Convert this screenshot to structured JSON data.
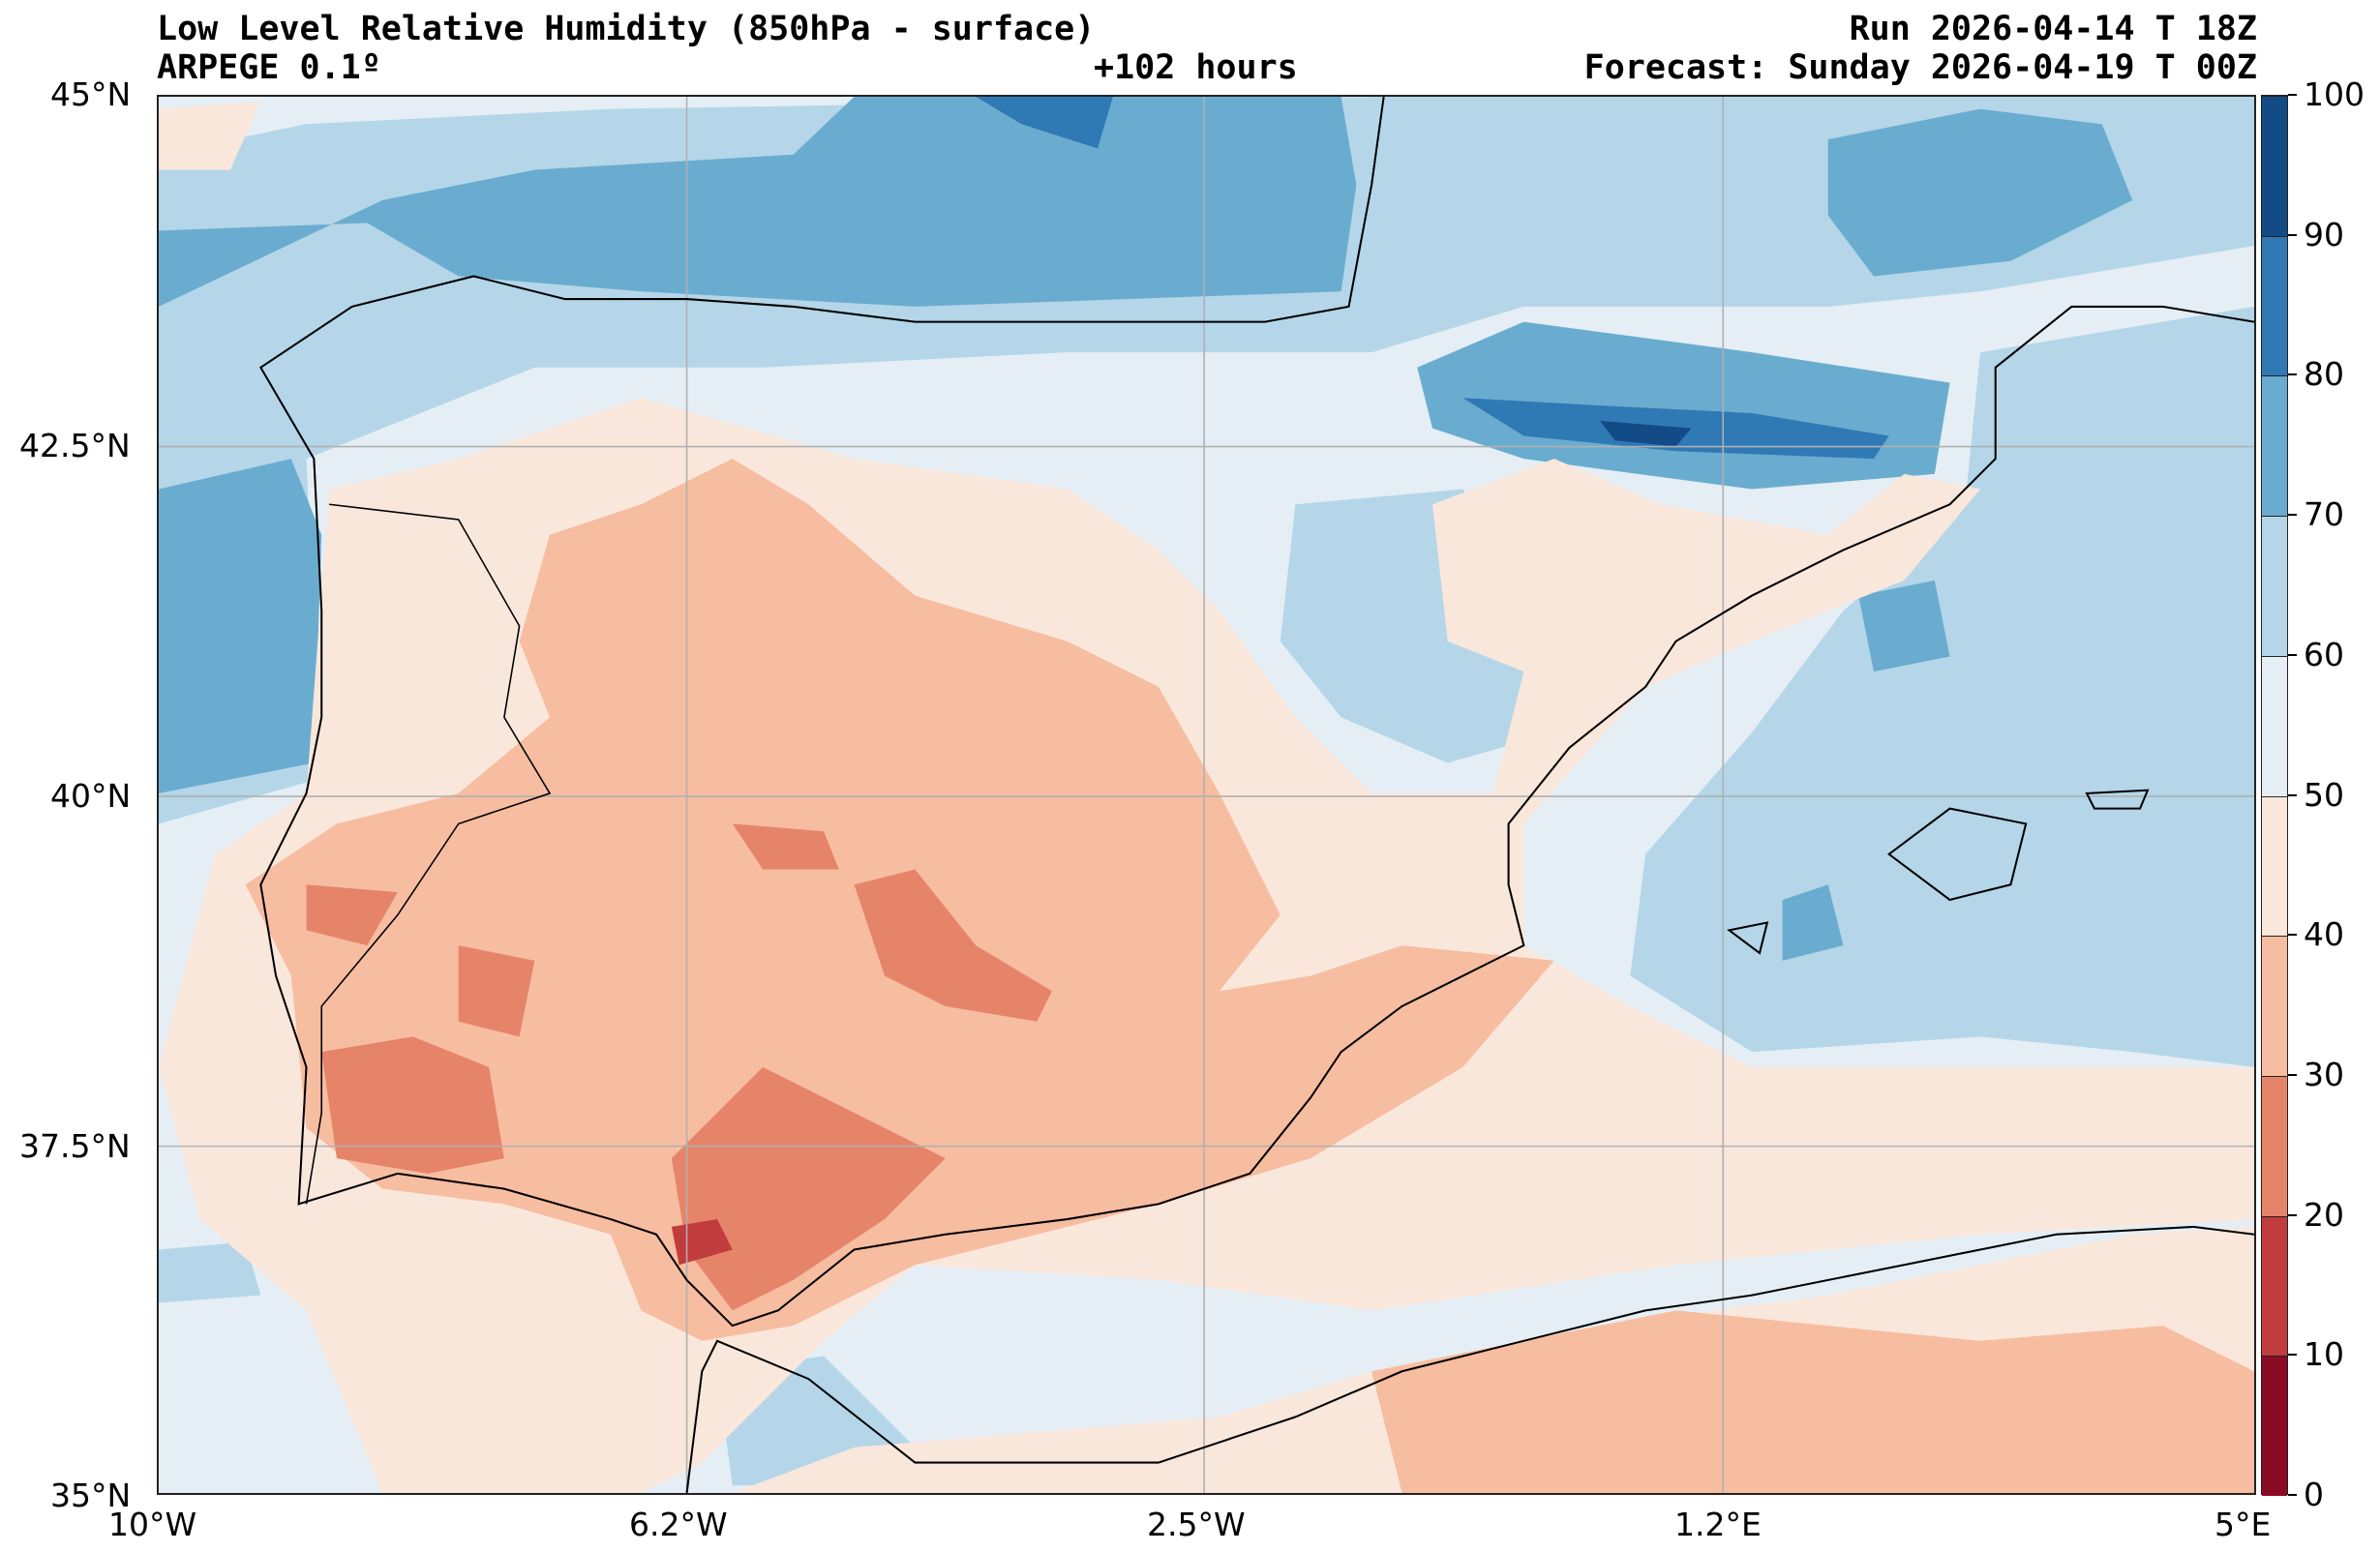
{
  "header": {
    "title": "Low Level Relative Humidity (850hPa - surface)",
    "model": "ARPEGE 0.1º",
    "lead_time": "+102 hours",
    "run": "Run 2026-04-14 T 18Z",
    "forecast": "Forecast: Sunday 2026-04-19 T 00Z"
  },
  "axes": {
    "lat_labels": [
      "45°N",
      "42.5°N",
      "40°N",
      "37.5°N",
      "35°N"
    ],
    "lon_labels": [
      "10°W",
      "6.2°W",
      "2.5°W",
      "1.2°E",
      "5°E"
    ]
  },
  "colorbar": {
    "labels": [
      "100",
      "90",
      "80",
      "70",
      "60",
      "50",
      "40",
      "30",
      "20",
      "10",
      "0"
    ],
    "levels": [
      0,
      10,
      20,
      30,
      40,
      50,
      60,
      70,
      80,
      90,
      100
    ],
    "colors": [
      "#8a0b25",
      "#c13c3c",
      "#e6846a",
      "#f7bda1",
      "#fae7dc",
      "#e5eef4",
      "#b4d6e8",
      "#6aacd0",
      "#2f79b5",
      "#134b87"
    ]
  },
  "chart_data": {
    "type": "heatmap",
    "title": "Low Level Relative Humidity (850hPa - surface)",
    "units": "%",
    "lon_range": [
      -10,
      5
    ],
    "lat_range": [
      35,
      45
    ],
    "contour_levels": [
      0,
      10,
      20,
      30,
      40,
      50,
      60,
      70,
      80,
      90,
      100
    ]
  }
}
